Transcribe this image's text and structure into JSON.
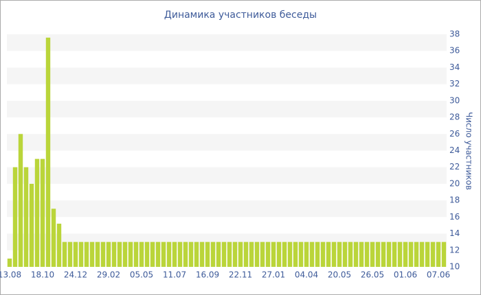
{
  "chart_data": {
    "type": "bar",
    "title": "Динамика участников беседы",
    "y_label": "Число участников",
    "categories": [
      "13.08",
      null,
      null,
      null,
      null,
      null,
      "18.10",
      null,
      null,
      null,
      null,
      null,
      "24.12",
      null,
      null,
      null,
      null,
      null,
      "29.02",
      null,
      null,
      null,
      null,
      null,
      "05.05",
      null,
      null,
      null,
      null,
      null,
      "11.07",
      null,
      null,
      null,
      null,
      null,
      "16.09",
      null,
      null,
      null,
      null,
      null,
      "22.11",
      null,
      null,
      null,
      null,
      null,
      "27.01",
      null,
      null,
      null,
      null,
      null,
      "04.04",
      null,
      null,
      null,
      null,
      null,
      "20.05",
      null,
      null,
      null,
      null,
      null,
      "26.05",
      null,
      null,
      null,
      null,
      null,
      "01.06",
      null,
      null,
      null,
      null,
      null,
      "07.06",
      null
    ],
    "values": [
      11,
      22,
      26,
      22,
      20,
      23,
      23,
      37.6,
      17,
      15.2,
      13,
      13,
      13,
      13,
      13,
      13,
      13,
      13,
      13,
      13,
      13,
      13,
      13,
      13,
      13,
      13,
      13,
      13,
      13,
      13,
      13,
      13,
      13,
      13,
      13,
      13,
      13,
      13,
      13,
      13,
      13,
      13,
      13,
      13,
      13,
      13,
      13,
      13,
      13,
      13,
      13,
      13,
      13,
      13,
      13,
      13,
      13,
      13,
      13,
      13,
      13,
      13,
      13,
      13,
      13,
      13,
      13,
      13,
      13,
      13,
      13,
      13,
      13,
      13,
      13,
      13,
      13,
      13,
      13,
      13
    ],
    "color": "#bad53a",
    "ylim": [
      10,
      38
    ],
    "yticks": [
      10,
      12,
      14,
      16,
      18,
      20,
      22,
      24,
      26,
      28,
      30,
      32,
      34,
      36,
      38
    ],
    "y_axis_side": "right",
    "grid": true
  }
}
